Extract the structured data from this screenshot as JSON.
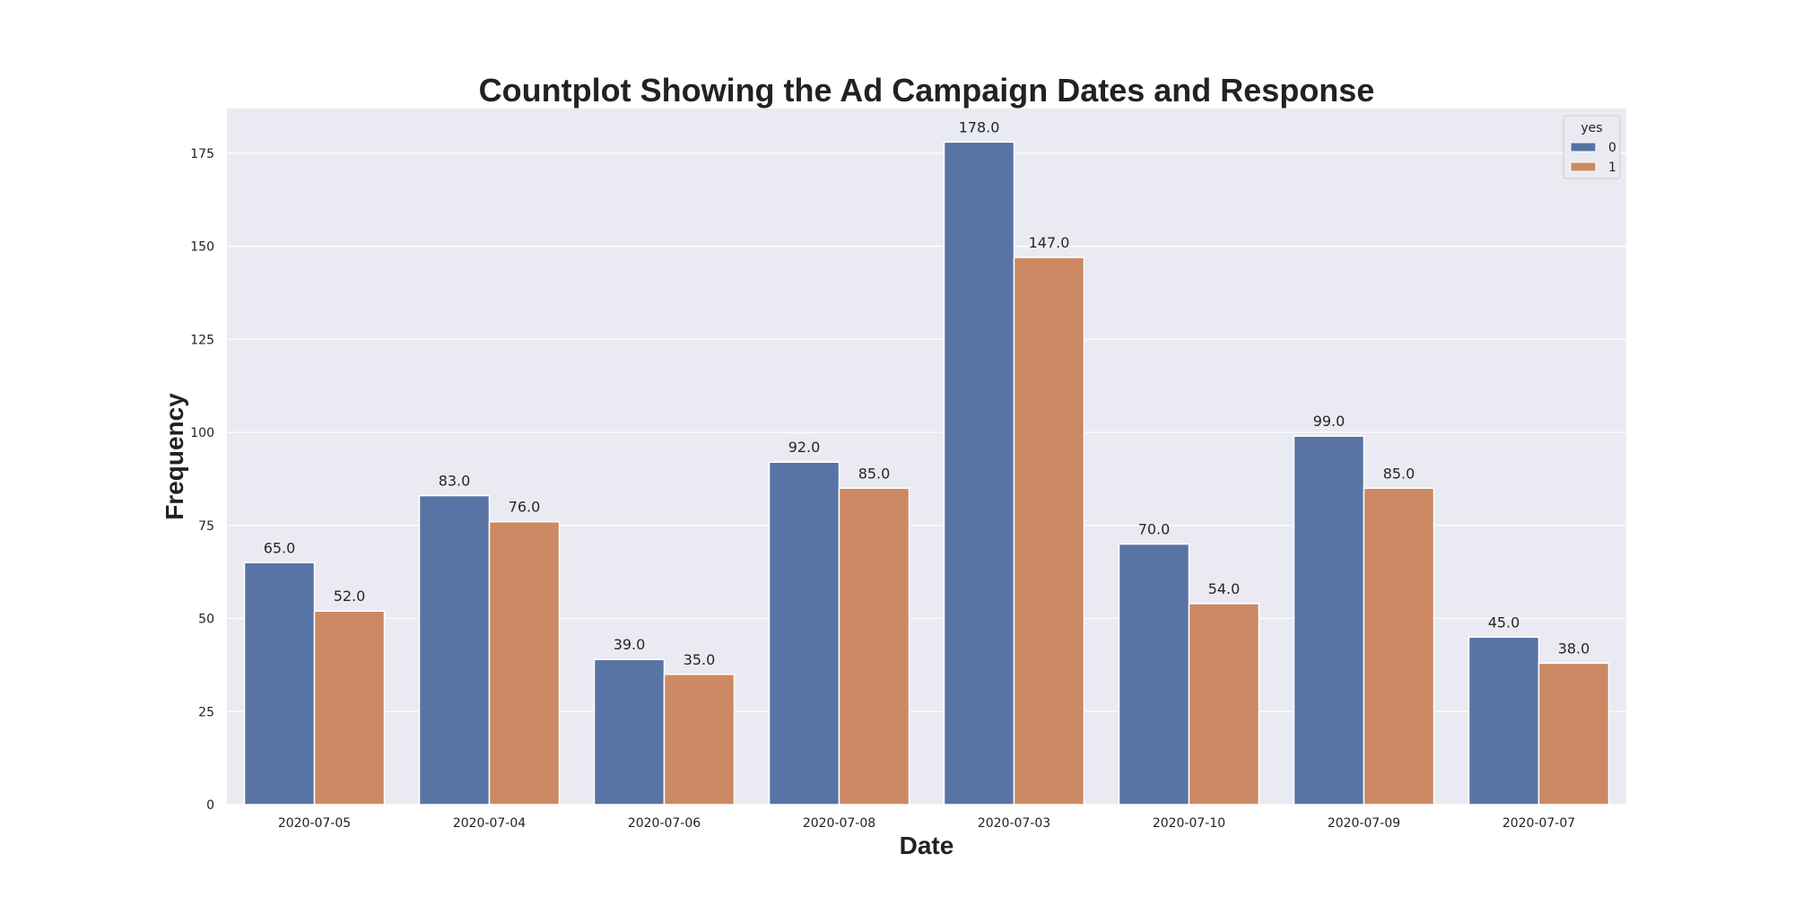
{
  "chart_data": {
    "type": "bar",
    "title": "Countplot Showing the Ad Campaign Dates and Response",
    "xlabel": "Date",
    "ylabel": "Frequency",
    "categories": [
      "2020-07-05",
      "2020-07-04",
      "2020-07-06",
      "2020-07-08",
      "2020-07-03",
      "2020-07-10",
      "2020-07-09",
      "2020-07-07"
    ],
    "series": [
      {
        "name": "0",
        "color": "#5874a4",
        "values": [
          65,
          83,
          39,
          92,
          178,
          70,
          99,
          45
        ]
      },
      {
        "name": "1",
        "color": "#cc8963",
        "values": [
          52,
          76,
          35,
          85,
          147,
          54,
          85,
          38
        ]
      }
    ],
    "data_labels": [
      [
        "65.0",
        "83.0",
        "39.0",
        "92.0",
        "178.0",
        "70.0",
        "99.0",
        "45.0"
      ],
      [
        "52.0",
        "76.0",
        "35.0",
        "85.0",
        "147.0",
        "54.0",
        "85.0",
        "38.0"
      ]
    ],
    "ylim": [
      0,
      187
    ],
    "yticks": [
      0,
      25,
      50,
      75,
      100,
      125,
      150,
      175
    ],
    "grid": true,
    "legend": {
      "title": "yes",
      "placement": "top-right"
    },
    "background": "#eaeaf2"
  }
}
